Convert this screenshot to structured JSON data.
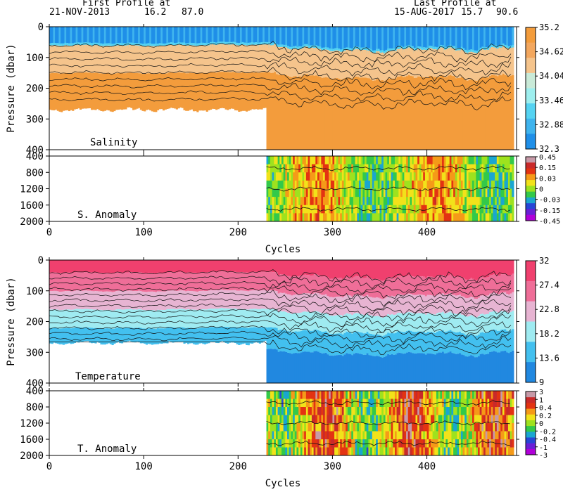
{
  "header": {
    "first_title": "First Profile at",
    "first_date": "21-NOV-2013",
    "first_lat": "16.2",
    "first_lon": "87.0",
    "last_title": "Last Profile at",
    "last_date": "15-AUG-2017",
    "last_lat": "15.7",
    "last_lon": "90.6"
  },
  "colors": {
    "salinity_scale": [
      "#1f8fe8",
      "#3fb4ee",
      "#55d3f2",
      "#9eefef",
      "#c9ead8",
      "#f5c48c",
      "#f3a75e",
      "#f39c3c"
    ],
    "temperature_scale": [
      "#2188e0",
      "#43c0ef",
      "#9febf1",
      "#e7b4d2",
      "#ef6e98",
      "#f0406e"
    ],
    "anomaly_scale": [
      "#b000d8",
      "#6a1fd6",
      "#2646d6",
      "#1aa6d0",
      "#33c94a",
      "#9ee21e",
      "#f2e21a",
      "#f59a18",
      "#e33312",
      "#c92a2a",
      "#c79aa8"
    ]
  },
  "chart_data": [
    {
      "type": "heatmap",
      "variable": "Salinity",
      "xlabel": "",
      "ylabel": "Pressure (dbar)",
      "x_ticks": [
        "0",
        "100",
        "200",
        "300",
        "400"
      ],
      "y_ticks": [
        "0",
        "100",
        "200",
        "300",
        "400"
      ],
      "xlim": [
        0,
        495
      ],
      "ylim": [
        400,
        0
      ],
      "colorbar_labels": [
        "35.2",
        "34.62",
        "34.04",
        "33.46",
        "32.88",
        "32.3"
      ],
      "colorbar_range": [
        32.3,
        35.2
      ],
      "data_extent": {
        "cycles": [
          0,
          490
        ],
        "shallow_profiles_until_cycle": 230,
        "shallow_max_depth_dbar": 270,
        "deep_max_depth_dbar": 400
      },
      "surface_layer_depth_dbar": {
        "cycles": [
          0,
          100,
          200,
          230,
          260,
          300,
          350,
          400,
          450,
          490
        ],
        "values": [
          60,
          62,
          58,
          60,
          70,
          75,
          80,
          70,
          80,
          65
        ]
      },
      "contour_count": 9
    },
    {
      "type": "heatmap",
      "variable": "S. Anomaly",
      "xlabel": "Cycles",
      "ylabel": "",
      "x_ticks": [
        "0",
        "100",
        "200",
        "300",
        "400"
      ],
      "y_ticks": [
        "400",
        "800",
        "1200",
        "1600",
        "2000"
      ],
      "xlim": [
        0,
        495
      ],
      "ylim": [
        2000,
        400
      ],
      "colorbar_labels": [
        "0.45",
        "0.15",
        "0.03",
        "0",
        "-0.03",
        "-0.15",
        "-0.45"
      ],
      "data_extent": {
        "cycles": [
          230,
          490
        ]
      }
    },
    {
      "type": "heatmap",
      "variable": "Temperature",
      "xlabel": "",
      "ylabel": "Pressure (dbar)",
      "x_ticks": [
        "0",
        "100",
        "200",
        "300",
        "400"
      ],
      "y_ticks": [
        "0",
        "100",
        "200",
        "300",
        "400"
      ],
      "xlim": [
        0,
        495
      ],
      "ylim": [
        400,
        0
      ],
      "colorbar_labels": [
        "32",
        "27.4",
        "22.8",
        "18.2",
        "13.6",
        "9"
      ],
      "colorbar_range": [
        9,
        32
      ],
      "data_extent": {
        "cycles": [
          0,
          490
        ],
        "shallow_profiles_until_cycle": 230,
        "shallow_max_depth_dbar": 270,
        "deep_max_depth_dbar": 400
      },
      "contour_count": 14
    },
    {
      "type": "heatmap",
      "variable": "T. Anomaly",
      "xlabel": "Cycles",
      "ylabel": "",
      "x_ticks": [
        "0",
        "100",
        "200",
        "300",
        "400"
      ],
      "y_ticks": [
        "400",
        "800",
        "1200",
        "1600",
        "2000"
      ],
      "xlim": [
        0,
        495
      ],
      "ylim": [
        2000,
        400
      ],
      "colorbar_labels": [
        "3",
        "1",
        "0.4",
        "0.2",
        "0",
        "-0.2",
        "-0.4",
        "-1",
        "-3"
      ],
      "data_extent": {
        "cycles": [
          230,
          490
        ]
      }
    }
  ]
}
